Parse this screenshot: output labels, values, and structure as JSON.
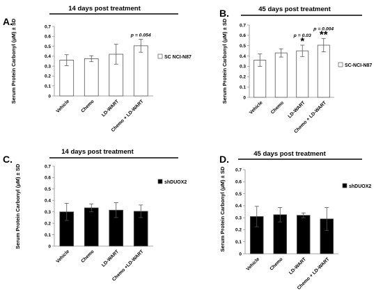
{
  "chart_data": [
    {
      "panel": "A.",
      "type": "bar",
      "title": "14 days post treatment",
      "ylabel": "Serum Protein Carbonyl (μM) ± SD",
      "categories": [
        "Vehicle",
        "Chemo",
        "LD-WART",
        "Chemo + LD-WART"
      ],
      "yticks": [
        "0",
        "0.1",
        "0.2",
        "0.3",
        "0.4",
        "0.5",
        "0.6",
        "0.7"
      ],
      "ylim": [
        0,
        0.7
      ],
      "series": [
        {
          "name": "SC NCI-N87",
          "values": [
            0.36,
            0.375,
            0.42,
            0.505
          ],
          "errors": [
            0.055,
            0.03,
            0.1,
            0.065
          ]
        }
      ],
      "annotations": [
        {
          "text": "p = 0.054",
          "category": 3
        }
      ],
      "fill": "#ffffff",
      "legend_position": "right"
    },
    {
      "panel": "B.",
      "type": "bar",
      "title": "45 days post treatment",
      "ylabel": "Serum Protein Carbonyl (μM) ± SD",
      "categories": [
        "Vehicle",
        "Chemo",
        "LD-WART",
        "Chemo + LD-WART"
      ],
      "yticks": [
        "0",
        "0.1",
        "0.2",
        "0.3",
        "0.4",
        "0.5",
        "0.6",
        "0.7"
      ],
      "ylim": [
        0,
        0.7
      ],
      "series": [
        {
          "name": "SC-NCI-N87",
          "values": [
            0.36,
            0.43,
            0.45,
            0.505
          ],
          "errors": [
            0.06,
            0.04,
            0.055,
            0.065
          ]
        }
      ],
      "annotations": [
        {
          "text": "p = 0.03",
          "stars": "*",
          "category": 2
        },
        {
          "text": "p = 0.004",
          "stars": "**",
          "category": 3
        }
      ],
      "fill": "#ffffff",
      "legend_position": "right"
    },
    {
      "panel": "C.",
      "type": "bar",
      "title": "14 days post treatment",
      "ylabel": "Serum Protein Carbonyl (μM) ± SD",
      "categories": [
        "Vehicle",
        "Chemo",
        "LD-WART",
        "Chemo +LD-WART"
      ],
      "yticks": [
        "0",
        "0.1",
        "0.2",
        "0.3",
        "0.4",
        "0.5",
        "0.6",
        "0.7"
      ],
      "ylim": [
        0,
        0.7
      ],
      "series": [
        {
          "name": "shDUOX2",
          "values": [
            0.3,
            0.335,
            0.315,
            0.305
          ],
          "errors": [
            0.075,
            0.035,
            0.065,
            0.055
          ]
        }
      ],
      "annotations": [],
      "fill": "#000000",
      "legend_position": "right"
    },
    {
      "panel": "D.",
      "type": "bar",
      "title": "45 days post treatment",
      "ylabel": "Serum Protein Carbonyl (μM) ± SD",
      "categories": [
        "Vehicle",
        "Chemo",
        "LD-WART",
        "Chemo + LD-WART"
      ],
      "yticks": [
        "0",
        "0.1",
        "0.2",
        "0.3",
        "0.4",
        "0.5",
        "0.6",
        "0.7"
      ],
      "ylim": [
        0,
        0.7
      ],
      "series": [
        {
          "name": "shDUOX2",
          "values": [
            0.31,
            0.325,
            0.32,
            0.29
          ],
          "errors": [
            0.085,
            0.06,
            0.02,
            0.095
          ]
        }
      ],
      "annotations": [],
      "fill": "#000000",
      "legend_position": "right"
    }
  ]
}
